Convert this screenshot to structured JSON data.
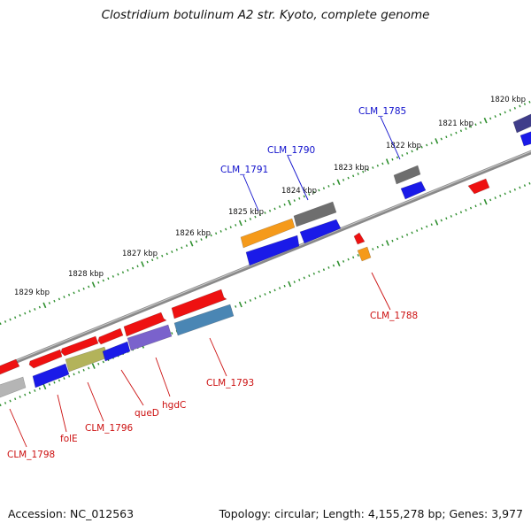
{
  "title": "Clostridium botulinum A2 str. Kyoto, complete genome",
  "footer": {
    "accession": "Accession: NC_012563",
    "topology": "Topology: circular; Length: 4,155,278 bp; Genes: 3,977"
  },
  "colors": {
    "backbone": "#8a8a8a",
    "tick": "#2f8f2f",
    "label_forward": "#1010cc",
    "label_reverse": "#cc1010",
    "red": "#ee1111",
    "blue": "#1a1ae8",
    "gray": "#6e6e6e",
    "orange": "#f59a1a",
    "olive": "#b3b35a",
    "purple": "#7a62cc",
    "steel": "#4a86b4",
    "light_gray": "#b5b5b5",
    "navy": "#3f3d8a"
  },
  "scale_labels": [
    "1820 kbp",
    "1821 kbp",
    "1822 kbp",
    "1823 kbp",
    "1824 kbp",
    "1825 kbp",
    "1826 kbp",
    "1827 kbp",
    "1828 kbp",
    "1829 kbp"
  ],
  "gene_labels": {
    "clm_1785": "CLM_1785",
    "clm_1790": "CLM_1790",
    "clm_1791": "CLM_1791",
    "clm_1788": "CLM_1788",
    "clm_1793": "CLM_1793",
    "hgdc": "hgdC",
    "qued": "queD",
    "clm_1796": "CLM_1796",
    "fole": "folE",
    "clm_1798": "CLM_1798"
  }
}
